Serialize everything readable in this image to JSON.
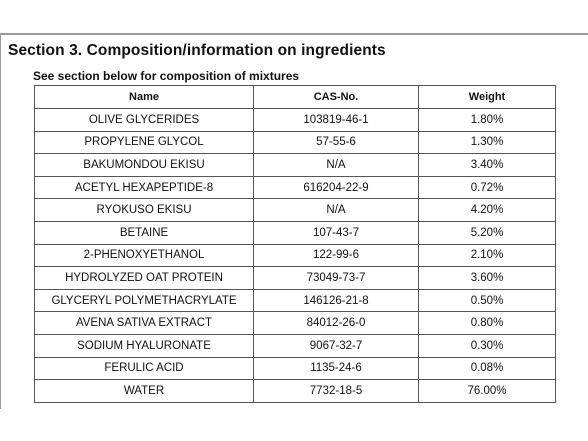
{
  "section": {
    "title": "Section 3. Composition/information on ingredients",
    "subtitle": "See section below for composition of mixtures"
  },
  "table": {
    "headers": [
      "Name",
      "CAS-No.",
      "Weight"
    ],
    "rows": [
      [
        "OLIVE GLYCERIDES",
        "103819-46-1",
        "1.80%"
      ],
      [
        "PROPYLENE GLYCOL",
        "57-55-6",
        "1.30%"
      ],
      [
        "BAKUMONDOU EKISU",
        "N/A",
        "3.40%"
      ],
      [
        "ACETYL HEXAPEPTIDE-8",
        "616204-22-9",
        "0.72%"
      ],
      [
        "RYOKUSO EKISU",
        "N/A",
        "4.20%"
      ],
      [
        "BETAINE",
        "107-43-7",
        "5.20%"
      ],
      [
        "2-PHENOXYETHANOL",
        "122-99-6",
        "2.10%"
      ],
      [
        "HYDROLYZED OAT PROTEIN",
        "73049-73-7",
        "3.60%"
      ],
      [
        "GLYCERYL POLYMETHACRYLATE",
        "146126-21-8",
        "0.50%"
      ],
      [
        "AVENA SATIVA EXTRACT",
        "84012-26-0",
        "0.80%"
      ],
      [
        "SODIUM HYALURONATE",
        "9067-32-7",
        "0.30%"
      ],
      [
        "FERULIC ACID",
        "1135-24-6",
        "0.08%"
      ],
      [
        "WATER",
        "7732-18-5",
        "76.00%"
      ]
    ]
  }
}
